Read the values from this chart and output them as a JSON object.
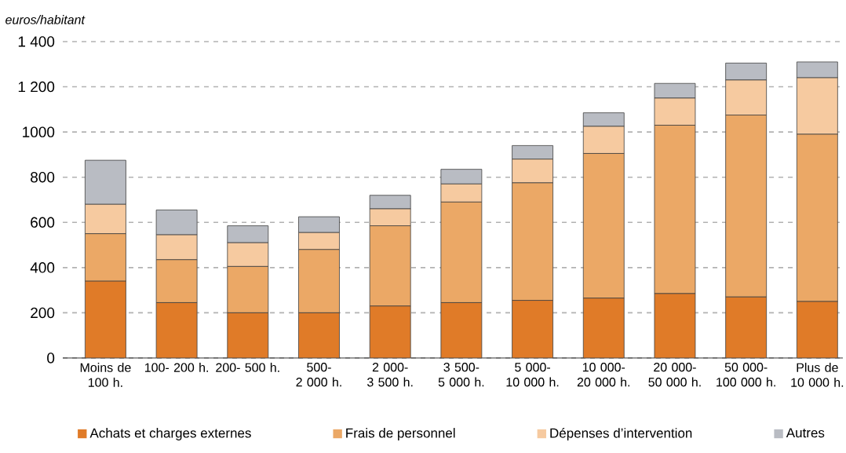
{
  "chart_data": {
    "type": "bar",
    "stacked": true,
    "ylabel": "euros/habitant",
    "categories": [
      "Moins de 100 h.",
      "100- 200 h.",
      "200- 500 h.",
      "500- 2 000 h.",
      "2 000- 3 500 h.",
      "3 500- 5 000 h.",
      "5 000- 10 000 h.",
      "10 000- 20 000 h.",
      "20 000- 50 000 h.",
      "50 000- 100 000 h.",
      "Plus de 10 000 h."
    ],
    "series": [
      {
        "name": "Achats et charges externes",
        "color": "#e07b28",
        "values": [
          340,
          245,
          200,
          200,
          230,
          245,
          255,
          265,
          285,
          270,
          250
        ]
      },
      {
        "name": "Frais de personnel",
        "color": "#eba866",
        "values": [
          210,
          190,
          205,
          280,
          355,
          445,
          520,
          640,
          745,
          805,
          740
        ]
      },
      {
        "name": "Dépenses d’intervention",
        "color": "#f6caa0",
        "values": [
          130,
          110,
          105,
          75,
          75,
          80,
          105,
          120,
          120,
          155,
          250
        ]
      },
      {
        "name": "Autres",
        "color": "#b9bcc3",
        "values": [
          195,
          110,
          75,
          70,
          60,
          65,
          60,
          60,
          65,
          75,
          70
        ]
      }
    ],
    "ylim": [
      0,
      1400
    ],
    "yticks": [
      0,
      200,
      400,
      600,
      800,
      1000,
      {
        "value": 1200,
        "label": "1 200"
      },
      {
        "value": 1400,
        "label": "1 400"
      }
    ],
    "grid": "y",
    "legend": "bottom"
  }
}
